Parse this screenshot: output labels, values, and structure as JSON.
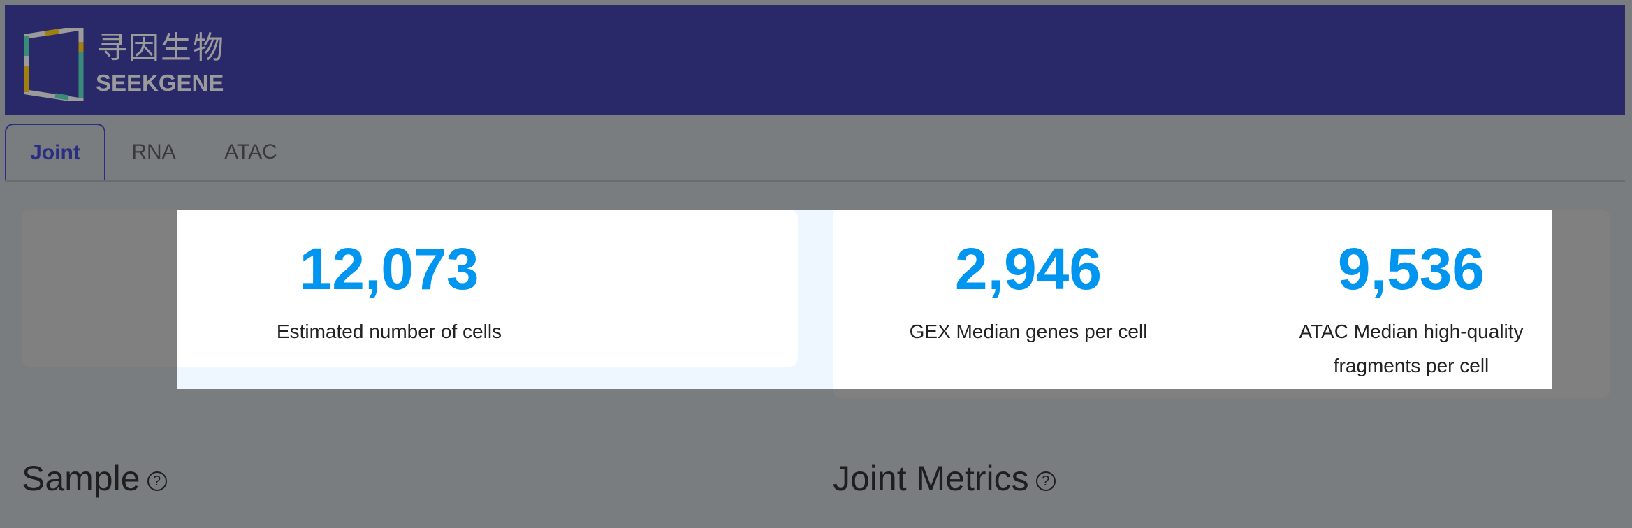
{
  "header": {
    "logo_cn": "寻因生物",
    "logo_en": "SEEKGENE",
    "bg_color": "#29296a"
  },
  "tabs": [
    {
      "label": "Joint",
      "active": true
    },
    {
      "label": "RNA"
    },
    {
      "label": "ATAC"
    }
  ],
  "summary": [
    {
      "value": "12,073",
      "label": "Estimated number of cells"
    },
    {
      "value": "2,946",
      "label": "GEX Median genes per cell"
    },
    {
      "value": "9,536",
      "label": "ATAC Median high-quality fragments per cell"
    }
  ],
  "sections": [
    {
      "title": "Sample",
      "icon": "help-icon"
    },
    {
      "title": "Joint Metrics",
      "icon": "help-icon"
    }
  ],
  "colors": {
    "accent": "#0096f0"
  }
}
